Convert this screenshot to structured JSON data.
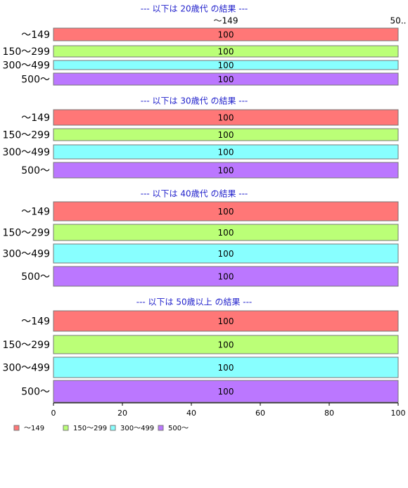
{
  "chart_data": {
    "type": "bar",
    "orientation": "horizontal",
    "annotations": [
      "〜149",
      "50.."
    ],
    "panels": [
      {
        "title": "--- 以下は 20歳代 の結果 ---",
        "categories": [
          "〜149",
          "150〜299",
          "300〜499",
          "500〜"
        ],
        "values": [
          100,
          100,
          100,
          100
        ]
      },
      {
        "title": "--- 以下は 30歳代 の結果 ---",
        "categories": [
          "〜149",
          "150〜299",
          "300〜499",
          "500〜"
        ],
        "values": [
          100,
          100,
          100,
          100
        ]
      },
      {
        "title": "--- 以下は 40歳代 の結果 ---",
        "categories": [
          "〜149",
          "150〜299",
          "300〜499",
          "500〜"
        ],
        "values": [
          100,
          100,
          100,
          100
        ]
      },
      {
        "title": "--- 以下は 50歳以上 の結果 ---",
        "categories": [
          "〜149",
          "150〜299",
          "300〜499",
          "500〜"
        ],
        "values": [
          100,
          100,
          100,
          100
        ]
      }
    ],
    "colors": [
      "#ff7777",
      "#bbff77",
      "#88ffff",
      "#bb77ff"
    ],
    "legend": [
      "〜149",
      "150〜299",
      "300〜499",
      "500〜"
    ],
    "xlim": [
      0,
      100
    ],
    "xticks": [
      0,
      20,
      40,
      60,
      80,
      100
    ]
  }
}
